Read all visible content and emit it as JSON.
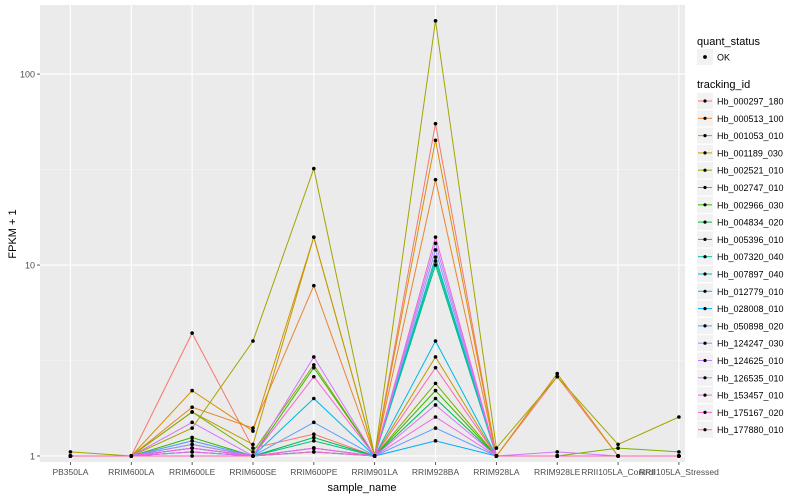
{
  "chart_data": {
    "type": "line",
    "xlabel": "sample_name",
    "ylabel": "FPKM + 1",
    "y_scale": "log10",
    "ylim": [
      0.93,
      230
    ],
    "y_ticks": [
      1,
      10,
      100
    ],
    "y_tick_labels": [
      "1",
      "10",
      "100"
    ],
    "categories": [
      "PB350LA",
      "RRIM600LA",
      "RRIM600LE",
      "RRIM600SE",
      "RRIM600PE",
      "RRIM901LA",
      "RRIM928BA",
      "RRIM928LA",
      "RRIM928LE",
      "RRII105LA_Control",
      "RRII105LA_Stressed"
    ],
    "grid": true,
    "legend_position": "right",
    "legend_status": {
      "title": "quant_status",
      "entries": [
        "OK"
      ]
    },
    "legend_series_title": "tracking_id",
    "series": [
      {
        "name": "Hb_000297_180",
        "color": "#F8766D",
        "values": [
          1.0,
          1.0,
          4.4,
          1.1,
          1.3,
          1.0,
          55,
          1.0,
          2.6,
          1.0,
          1.0
        ]
      },
      {
        "name": "Hb_000513_100",
        "color": "#EA8331",
        "values": [
          1.0,
          1.0,
          1.8,
          1.4,
          7.8,
          1.0,
          28,
          1.0,
          1.0,
          1.0,
          1.0
        ]
      },
      {
        "name": "Hb_001053_010",
        "color": "#D89000",
        "values": [
          1.0,
          1.0,
          2.2,
          1.35,
          14,
          1.0,
          45,
          1.0,
          2.7,
          1.0,
          1.0
        ]
      },
      {
        "name": "Hb_001189_030",
        "color": "#C09B00",
        "values": [
          1.0,
          1.0,
          1.7,
          1.15,
          14,
          1.0,
          3.3,
          1.0,
          1.0,
          1.0,
          1.0
        ]
      },
      {
        "name": "Hb_002521_010",
        "color": "#A3A500",
        "values": [
          1.05,
          1.0,
          1.4,
          4.0,
          32,
          1.0,
          190,
          1.1,
          2.6,
          1.15,
          1.6
        ]
      },
      {
        "name": "Hb_002747_010",
        "color": "#7CAE00",
        "values": [
          1.0,
          1.0,
          1.7,
          1.05,
          3.0,
          1.0,
          2.4,
          1.0,
          1.0,
          1.1,
          1.05
        ]
      },
      {
        "name": "Hb_002966_030",
        "color": "#39B600",
        "values": [
          1.0,
          1.0,
          1.25,
          1.0,
          2.9,
          1.0,
          2.2,
          1.0,
          1.0,
          1.0,
          1.0
        ]
      },
      {
        "name": "Hb_004834_020",
        "color": "#00BB4E",
        "values": [
          1.0,
          1.0,
          1.15,
          1.0,
          1.25,
          1.0,
          2.0,
          1.0,
          1.0,
          1.0,
          1.0
        ]
      },
      {
        "name": "Hb_005396_010",
        "color": "#00BF7D",
        "values": [
          1.0,
          1.0,
          1.05,
          1.0,
          1.2,
          1.0,
          10,
          1.0,
          1.0,
          1.0,
          1.0
        ]
      },
      {
        "name": "Hb_007320_040",
        "color": "#00C1A3",
        "values": [
          1.0,
          1.0,
          1.1,
          1.0,
          1.1,
          1.0,
          10.5,
          1.0,
          1.0,
          1.0,
          1.0
        ]
      },
      {
        "name": "Hb_007897_040",
        "color": "#00BFC4",
        "values": [
          1.0,
          1.0,
          1.1,
          1.0,
          1.05,
          1.0,
          11,
          1.0,
          1.0,
          1.0,
          1.0
        ]
      },
      {
        "name": "Hb_012779_010",
        "color": "#00B8E5",
        "values": [
          1.0,
          1.0,
          1.2,
          1.0,
          2.0,
          1.0,
          4.0,
          1.0,
          1.0,
          1.0,
          1.0
        ]
      },
      {
        "name": "Hb_028008_010",
        "color": "#00ACFC",
        "values": [
          1.0,
          1.0,
          1.05,
          1.0,
          1.05,
          1.0,
          1.2,
          1.0,
          1.0,
          1.0,
          1.0
        ]
      },
      {
        "name": "Hb_050898_020",
        "color": "#619CFF",
        "values": [
          1.0,
          1.0,
          1.2,
          1.0,
          1.5,
          1.0,
          1.4,
          1.0,
          1.0,
          1.0,
          1.0
        ]
      },
      {
        "name": "Hb_124247_030",
        "color": "#9590FF",
        "values": [
          1.0,
          1.0,
          1.1,
          1.0,
          1.1,
          1.0,
          12,
          1.0,
          1.0,
          1.0,
          1.0
        ]
      },
      {
        "name": "Hb_124625_010",
        "color": "#B983FF",
        "values": [
          1.0,
          1.0,
          1.15,
          1.0,
          1.1,
          1.0,
          13,
          1.0,
          1.0,
          1.0,
          1.0
        ]
      },
      {
        "name": "Hb_126535_010",
        "color": "#DB72FB",
        "values": [
          1.0,
          1.0,
          1.5,
          1.0,
          3.3,
          1.0,
          1.85,
          1.0,
          1.05,
          1.0,
          1.0
        ]
      },
      {
        "name": "Hb_153457_010",
        "color": "#F066EA",
        "values": [
          1.0,
          1.0,
          1.05,
          1.0,
          1.1,
          1.0,
          1.6,
          1.0,
          1.0,
          1.0,
          1.0
        ]
      },
      {
        "name": "Hb_175167_020",
        "color": "#FC61D6",
        "values": [
          1.0,
          1.0,
          1.1,
          1.0,
          2.6,
          1.0,
          14,
          1.0,
          1.0,
          1.0,
          1.0
        ]
      },
      {
        "name": "Hb_177880_010",
        "color": "#FF65AC",
        "values": [
          1.0,
          1.0,
          1.0,
          1.0,
          1.05,
          1.0,
          2.9,
          1.0,
          1.0,
          1.0,
          1.0
        ]
      }
    ]
  }
}
